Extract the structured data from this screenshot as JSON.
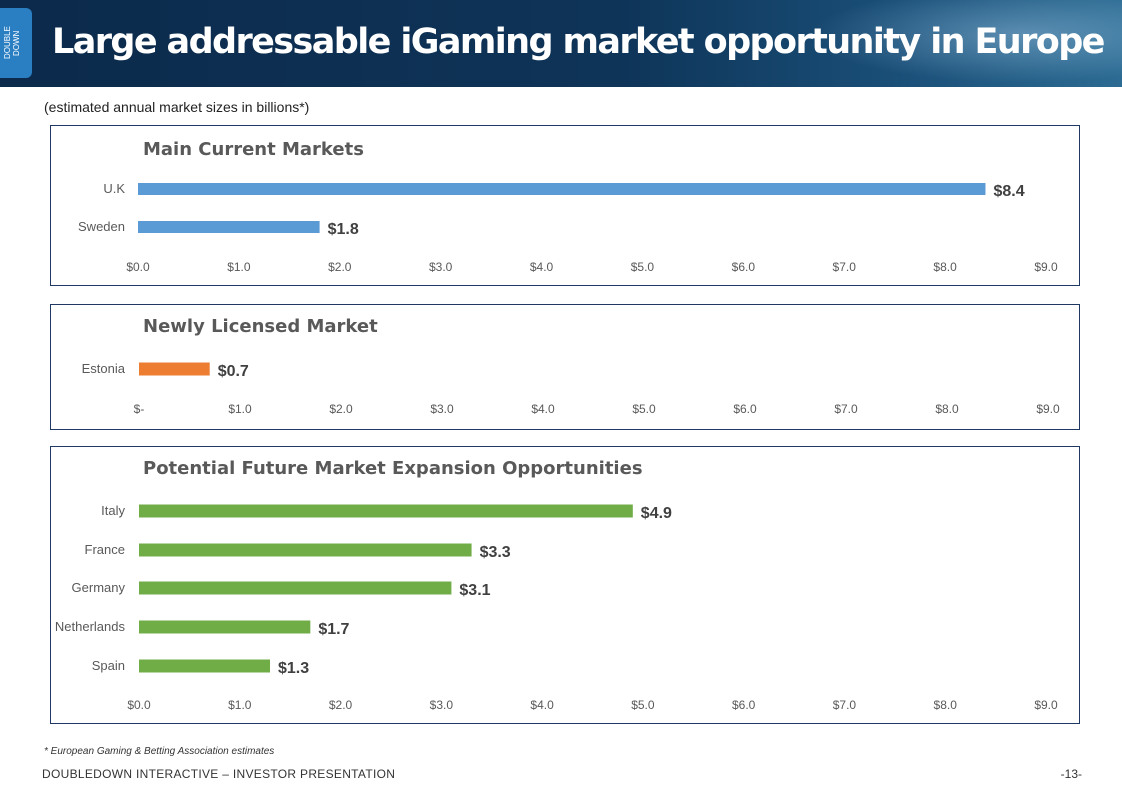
{
  "header": {
    "logo_text": "DOUBLE DOWN",
    "title": "Large addressable iGaming market opportunity in Europe"
  },
  "subtitle": "(estimated annual market sizes in billions*)",
  "colors": {
    "header_bg": "#0e3458",
    "blue_bar": "#5b9bd5",
    "orange_bar": "#ed7d31",
    "green_bar": "#70ad47",
    "panel_border": "#1f3864"
  },
  "chart_data": [
    {
      "type": "bar",
      "orientation": "horizontal",
      "title": "Main Current Markets",
      "categories": [
        "U.K",
        "Sweden"
      ],
      "values": [
        8.4,
        1.8
      ],
      "value_labels": [
        "$8.4",
        "$1.8"
      ],
      "xlim": [
        0,
        9
      ],
      "xticks": [
        "$0.0",
        "$1.0",
        "$2.0",
        "$3.0",
        "$4.0",
        "$5.0",
        "$6.0",
        "$7.0",
        "$8.0",
        "$9.0"
      ],
      "color": "#5b9bd5",
      "grid": false
    },
    {
      "type": "bar",
      "orientation": "horizontal",
      "title": "Newly Licensed Market",
      "categories": [
        "Estonia"
      ],
      "values": [
        0.7
      ],
      "value_labels": [
        "$0.7"
      ],
      "xlim": [
        0,
        9
      ],
      "xticks": [
        "$-",
        "$1.0",
        "$2.0",
        "$3.0",
        "$4.0",
        "$5.0",
        "$6.0",
        "$7.0",
        "$8.0",
        "$9.0"
      ],
      "color": "#ed7d31",
      "grid": false
    },
    {
      "type": "bar",
      "orientation": "horizontal",
      "title": "Potential Future Market Expansion Opportunities",
      "categories": [
        "Italy",
        "France",
        "Germany",
        "Netherlands",
        "Spain"
      ],
      "values": [
        4.9,
        3.3,
        3.1,
        1.7,
        1.3
      ],
      "value_labels": [
        "$4.9",
        "$3.3",
        "$3.1",
        "$1.7",
        "$1.3"
      ],
      "xlim": [
        0,
        9
      ],
      "xticks": [
        "$0.0",
        "$1.0",
        "$2.0",
        "$3.0",
        "$4.0",
        "$5.0",
        "$6.0",
        "$7.0",
        "$8.0",
        "$9.0"
      ],
      "color": "#70ad47",
      "grid": false
    }
  ],
  "footnote": "* European Gaming & Betting Association estimates",
  "footer": {
    "text": "DOUBLEDOWN INTERACTIVE – INVESTOR PRESENTATION",
    "page": "-13-"
  }
}
